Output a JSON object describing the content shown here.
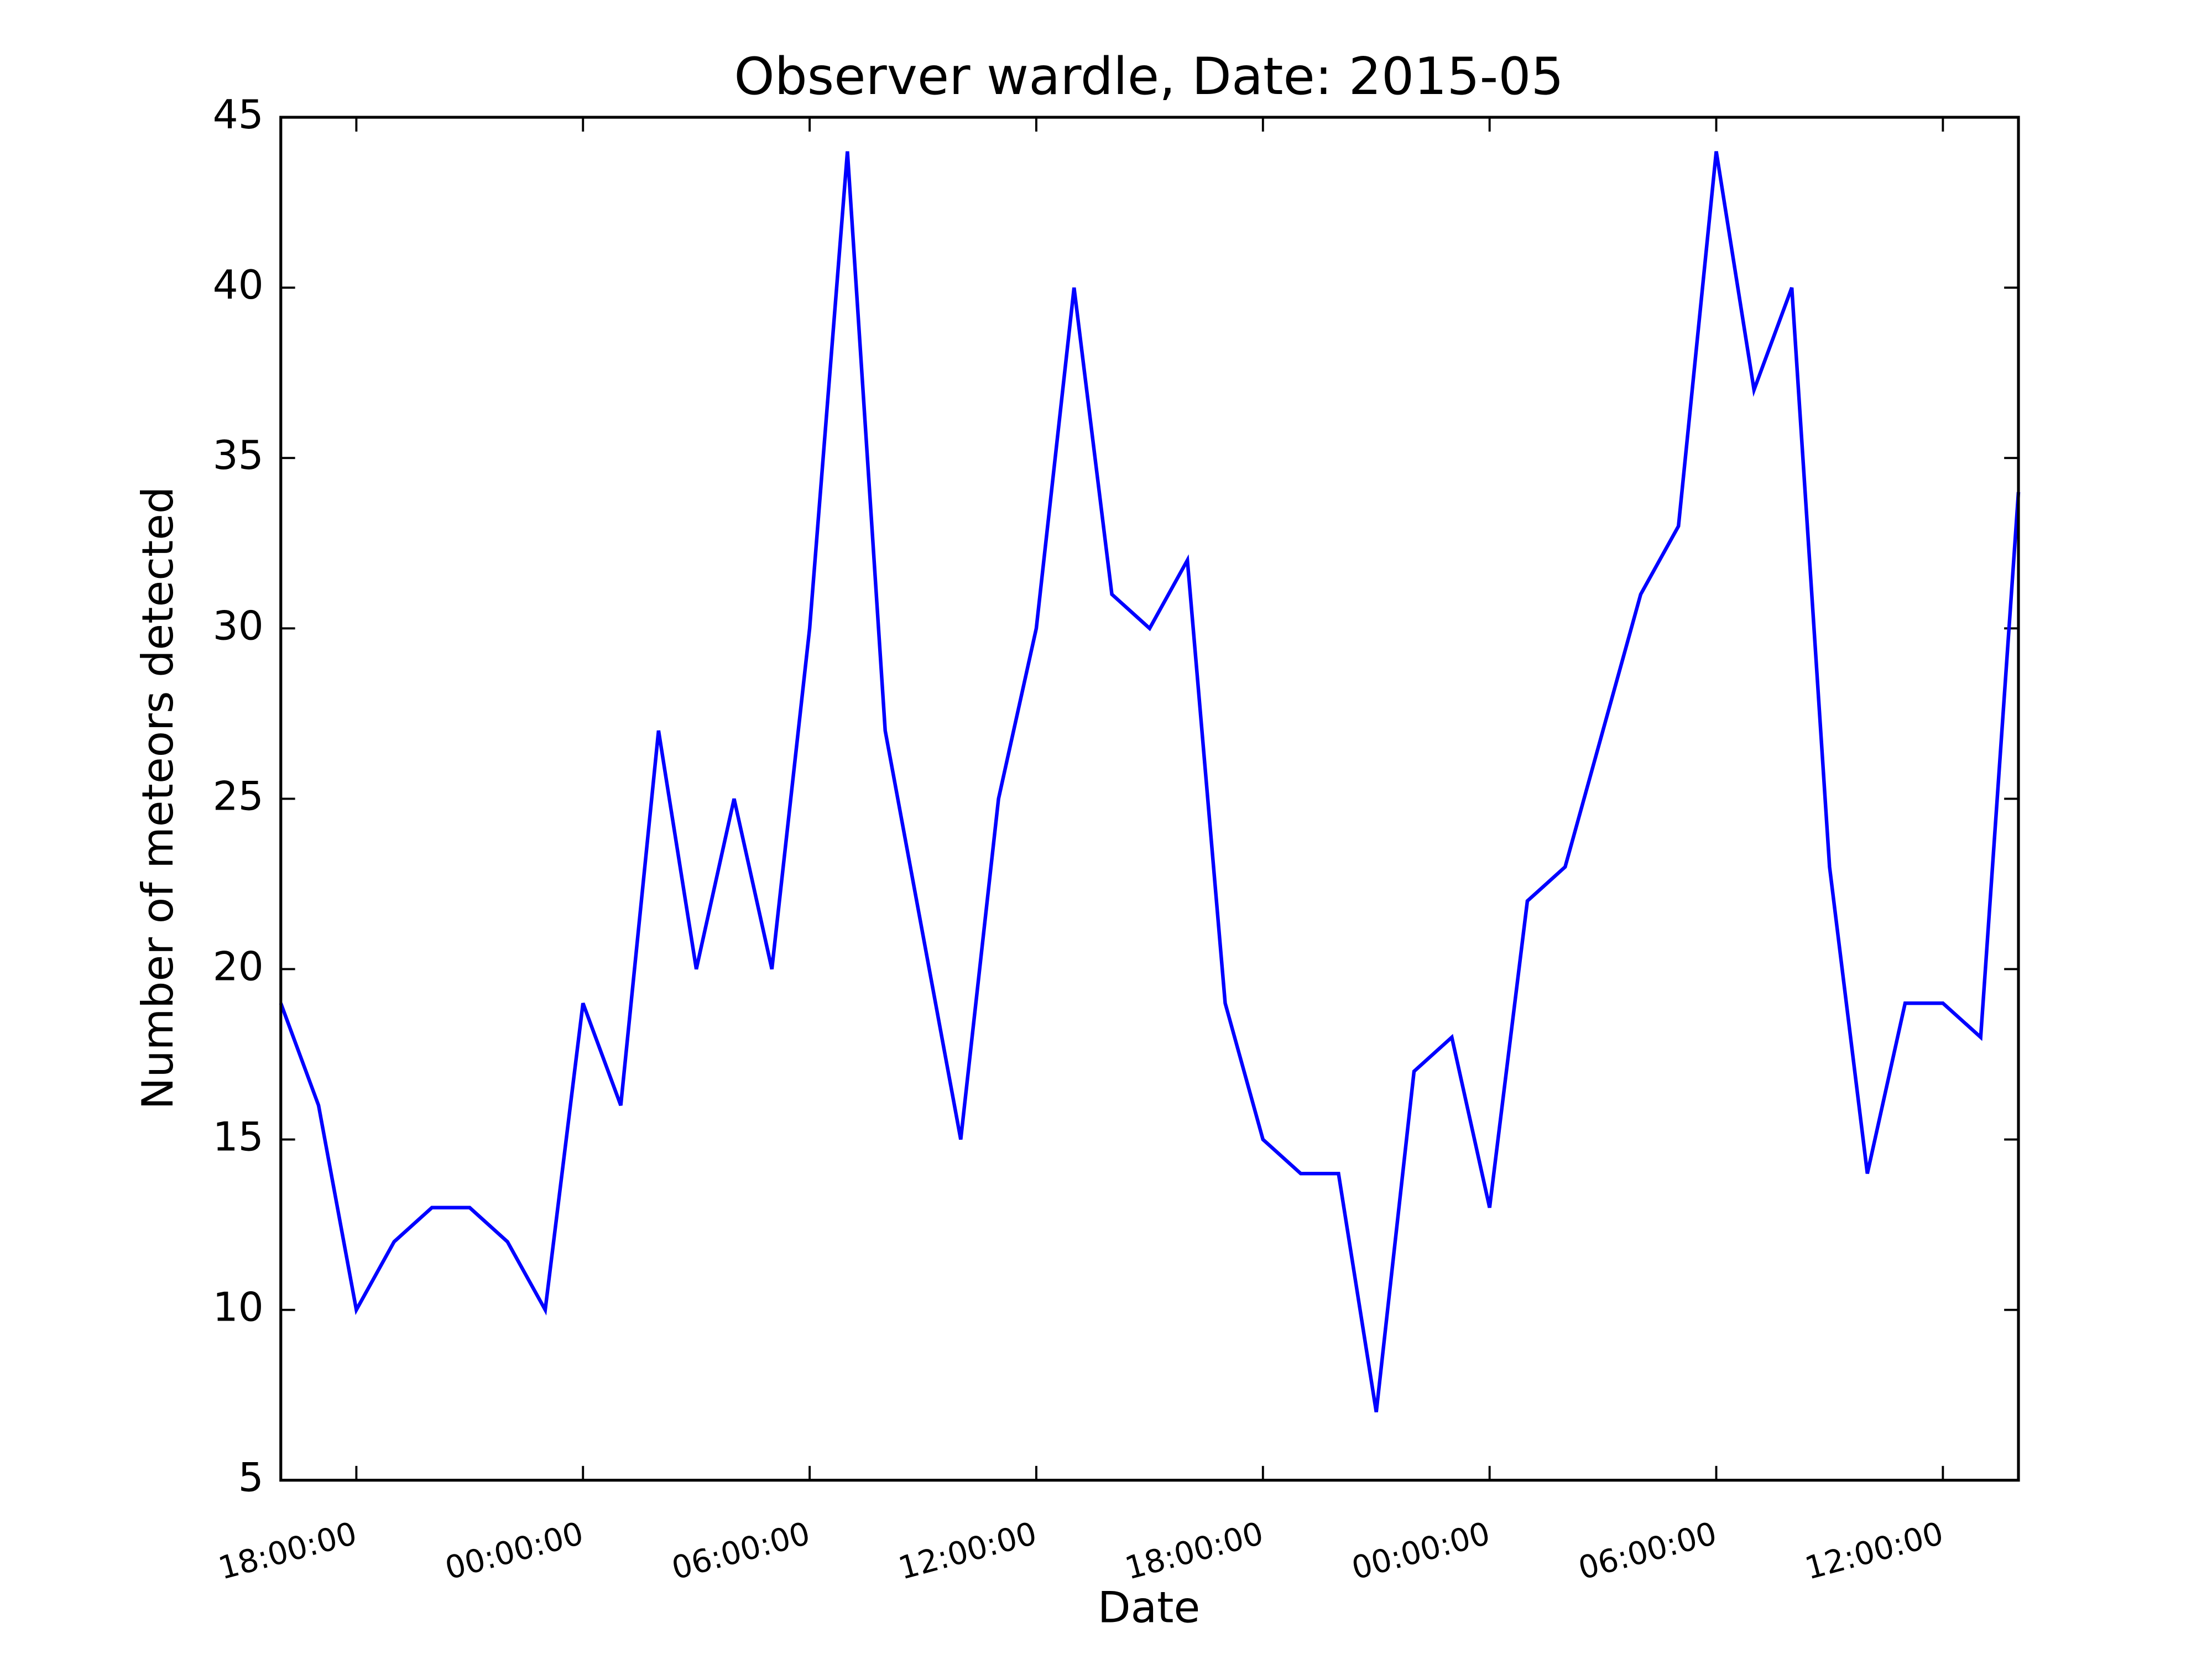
{
  "chart_data": {
    "type": "line",
    "title": "Observer wardle, Date: 2015-05",
    "xlabel": "Date",
    "ylabel": "Number of meteors detected",
    "x": [
      0,
      1,
      2,
      3,
      4,
      5,
      6,
      7,
      8,
      9,
      10,
      11,
      12,
      13,
      14,
      15,
      16,
      17,
      18,
      19,
      20,
      21,
      22,
      23,
      24,
      25,
      26,
      27,
      28,
      29,
      30,
      31,
      32,
      33,
      34,
      35,
      36,
      37,
      38,
      39,
      40,
      41,
      42,
      43,
      44,
      45,
      46
    ],
    "series": [
      {
        "name": "wardle",
        "color": "#0000ff",
        "values": [
          19,
          16,
          10,
          12,
          13,
          13,
          12,
          10,
          19,
          16,
          27,
          20,
          25,
          20,
          30,
          44,
          27,
          21,
          15,
          25,
          30,
          40,
          31,
          30,
          32,
          19,
          15,
          14,
          14,
          7,
          17,
          18,
          13,
          22,
          23,
          27,
          31,
          33,
          44,
          37,
          40,
          23,
          14,
          19,
          19,
          18,
          34
        ]
      }
    ],
    "xlim": [
      0,
      46
    ],
    "xticks": [
      {
        "value": 2,
        "label": "18:00:00"
      },
      {
        "value": 8,
        "label": "00:00:00"
      },
      {
        "value": 14,
        "label": "06:00:00"
      },
      {
        "value": 20,
        "label": "12:00:00"
      },
      {
        "value": 26,
        "label": "18:00:00"
      },
      {
        "value": 32,
        "label": "00:00:00"
      },
      {
        "value": 38,
        "label": "06:00:00"
      },
      {
        "value": 44,
        "label": "12:00:00"
      }
    ],
    "ylim": [
      5,
      45
    ],
    "yticks": [
      5,
      10,
      15,
      20,
      25,
      30,
      35,
      40,
      45
    ],
    "grid": false
  }
}
